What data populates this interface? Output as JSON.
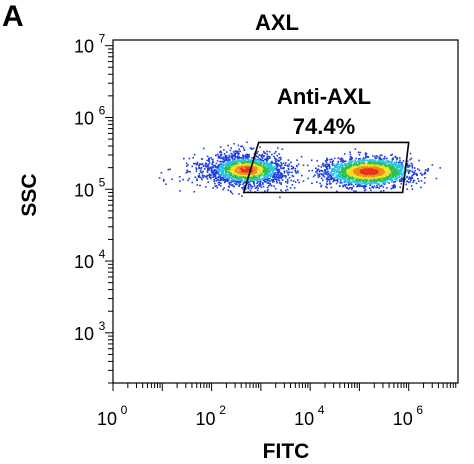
{
  "panel_letter": "A",
  "chart_data": {
    "type": "scatter",
    "subtype": "flow-cytometry-density-dot-plot",
    "title": "AXL",
    "xlabel": "FITC",
    "ylabel": "SSC",
    "x_scale": "log",
    "y_scale": "log",
    "xlim": [
      1,
      10000000
    ],
    "ylim": [
      200,
      12000000
    ],
    "x_ticks": [
      {
        "value": 1,
        "base": "10",
        "exp": "0"
      },
      {
        "value": 100,
        "base": "10",
        "exp": "2"
      },
      {
        "value": 10000,
        "base": "10",
        "exp": "4"
      },
      {
        "value": 1000000,
        "base": "10",
        "exp": "6"
      }
    ],
    "y_ticks": [
      {
        "value": 1000,
        "base": "10",
        "exp": "3"
      },
      {
        "value": 10000,
        "base": "10",
        "exp": "4"
      },
      {
        "value": 100000,
        "base": "10",
        "exp": "5"
      },
      {
        "value": 1000000,
        "base": "10",
        "exp": "6"
      },
      {
        "value": 10000000,
        "base": "10",
        "exp": "7"
      }
    ],
    "populations": [
      {
        "x_center": 500,
        "y_center": 190000,
        "x_spread_log10": 0.45,
        "y_spread_log10": 0.12
      },
      {
        "x_center": 150000,
        "y_center": 180000,
        "x_spread_log10": 0.45,
        "y_spread_log10": 0.1
      }
    ],
    "gate": {
      "label": "Anti-AXL",
      "percent": "74.4%",
      "vertices": [
        {
          "x": 900,
          "y": 450000
        },
        {
          "x": 1000000,
          "y": 450000
        },
        {
          "x": 750000,
          "y": 90000
        },
        {
          "x": 450,
          "y": 90000
        }
      ]
    },
    "grid": false,
    "legend": "none",
    "colors": {
      "density_low": "#1f3de0",
      "density_mid_low": "#27c3e8",
      "density_mid": "#28c24a",
      "density_mid_high": "#f2e21c",
      "density_high": "#e8321b",
      "axis": "#000000"
    }
  }
}
